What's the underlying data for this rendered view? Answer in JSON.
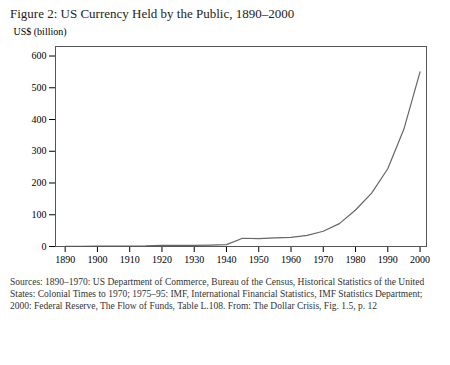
{
  "chart_data": {
    "type": "line",
    "title": "Figure 2: US Currency Held by the Public, 1890–2000",
    "ylabel": "US$ (billion)",
    "caption": "Sources: 1890–1970: US Department of Commerce, Bureau of the Census, Historical Statistics of the United States: Colonial Times to 1970; 1975–95: IMF, International Financial Statistics, IMF Statistics Department; 2000: Federal Reserve, The Flow of Funds, Table L.108. From: The Dollar Crisis, Fig. 1.5, p. 12",
    "x": [
      1890,
      1895,
      1900,
      1905,
      1910,
      1915,
      1920,
      1925,
      1930,
      1935,
      1940,
      1945,
      1950,
      1955,
      1960,
      1965,
      1970,
      1975,
      1980,
      1985,
      1990,
      1995,
      2000
    ],
    "values": [
      0.5,
      0.7,
      1.0,
      1.3,
      1.6,
      1.8,
      3.5,
      3.7,
      3.6,
      4.5,
      6.0,
      26.0,
      25.0,
      27.0,
      29.0,
      35.0,
      48.0,
      72.0,
      115.0,
      168.0,
      245.0,
      370.0,
      550.0
    ],
    "color": "#666666",
    "xlim": [
      1887,
      2002
    ],
    "ylim": [
      0,
      630
    ],
    "xticks": [
      1890,
      1900,
      1910,
      1920,
      1930,
      1940,
      1950,
      1960,
      1970,
      1980,
      1990,
      2000
    ],
    "yticks": [
      0,
      100,
      200,
      300,
      400,
      500,
      600
    ]
  }
}
